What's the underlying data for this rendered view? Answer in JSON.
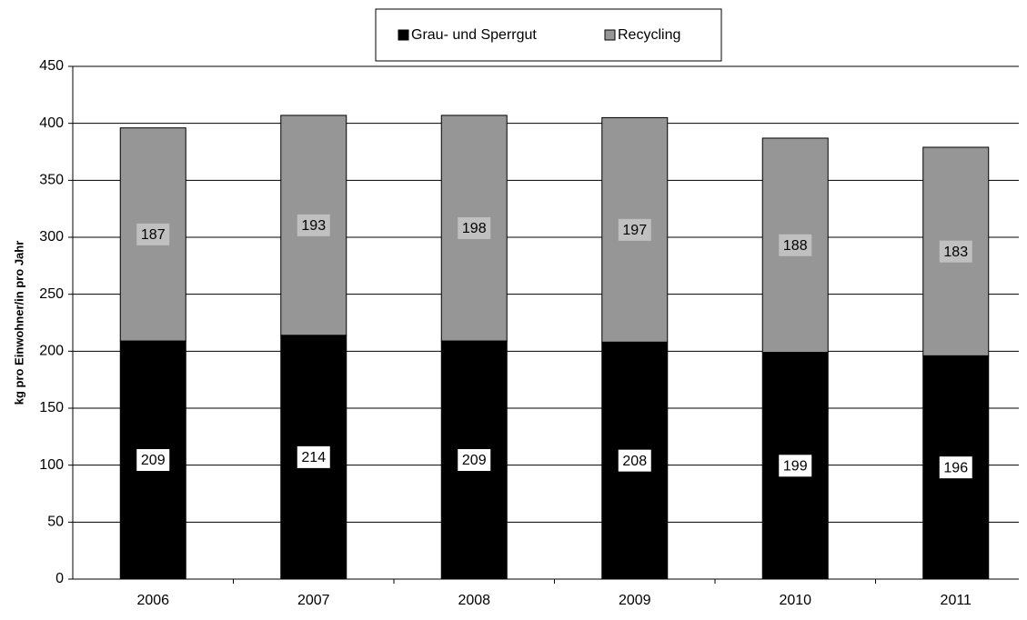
{
  "chart_data": {
    "type": "stacked_bar",
    "y_label": "kg pro Einwohner/in pro Jahr",
    "categories": [
      "2006",
      "2007",
      "2008",
      "2009",
      "2010",
      "2011"
    ],
    "series": [
      {
        "name": "Grau- und Sperrgut",
        "color": "#000000",
        "label_bg": "#ffffff",
        "values": [
          209,
          214,
          209,
          208,
          199,
          196
        ]
      },
      {
        "name": "Recycling",
        "color": "#969696",
        "label_bg": "#c0c0c0",
        "values": [
          187,
          193,
          198,
          197,
          188,
          183
        ]
      }
    ],
    "ylim": [
      0,
      450
    ],
    "yticks": [
      0,
      50,
      100,
      150,
      200,
      250,
      300,
      350,
      400,
      450
    ],
    "grid": true,
    "data_labels": true,
    "legend": "top"
  }
}
